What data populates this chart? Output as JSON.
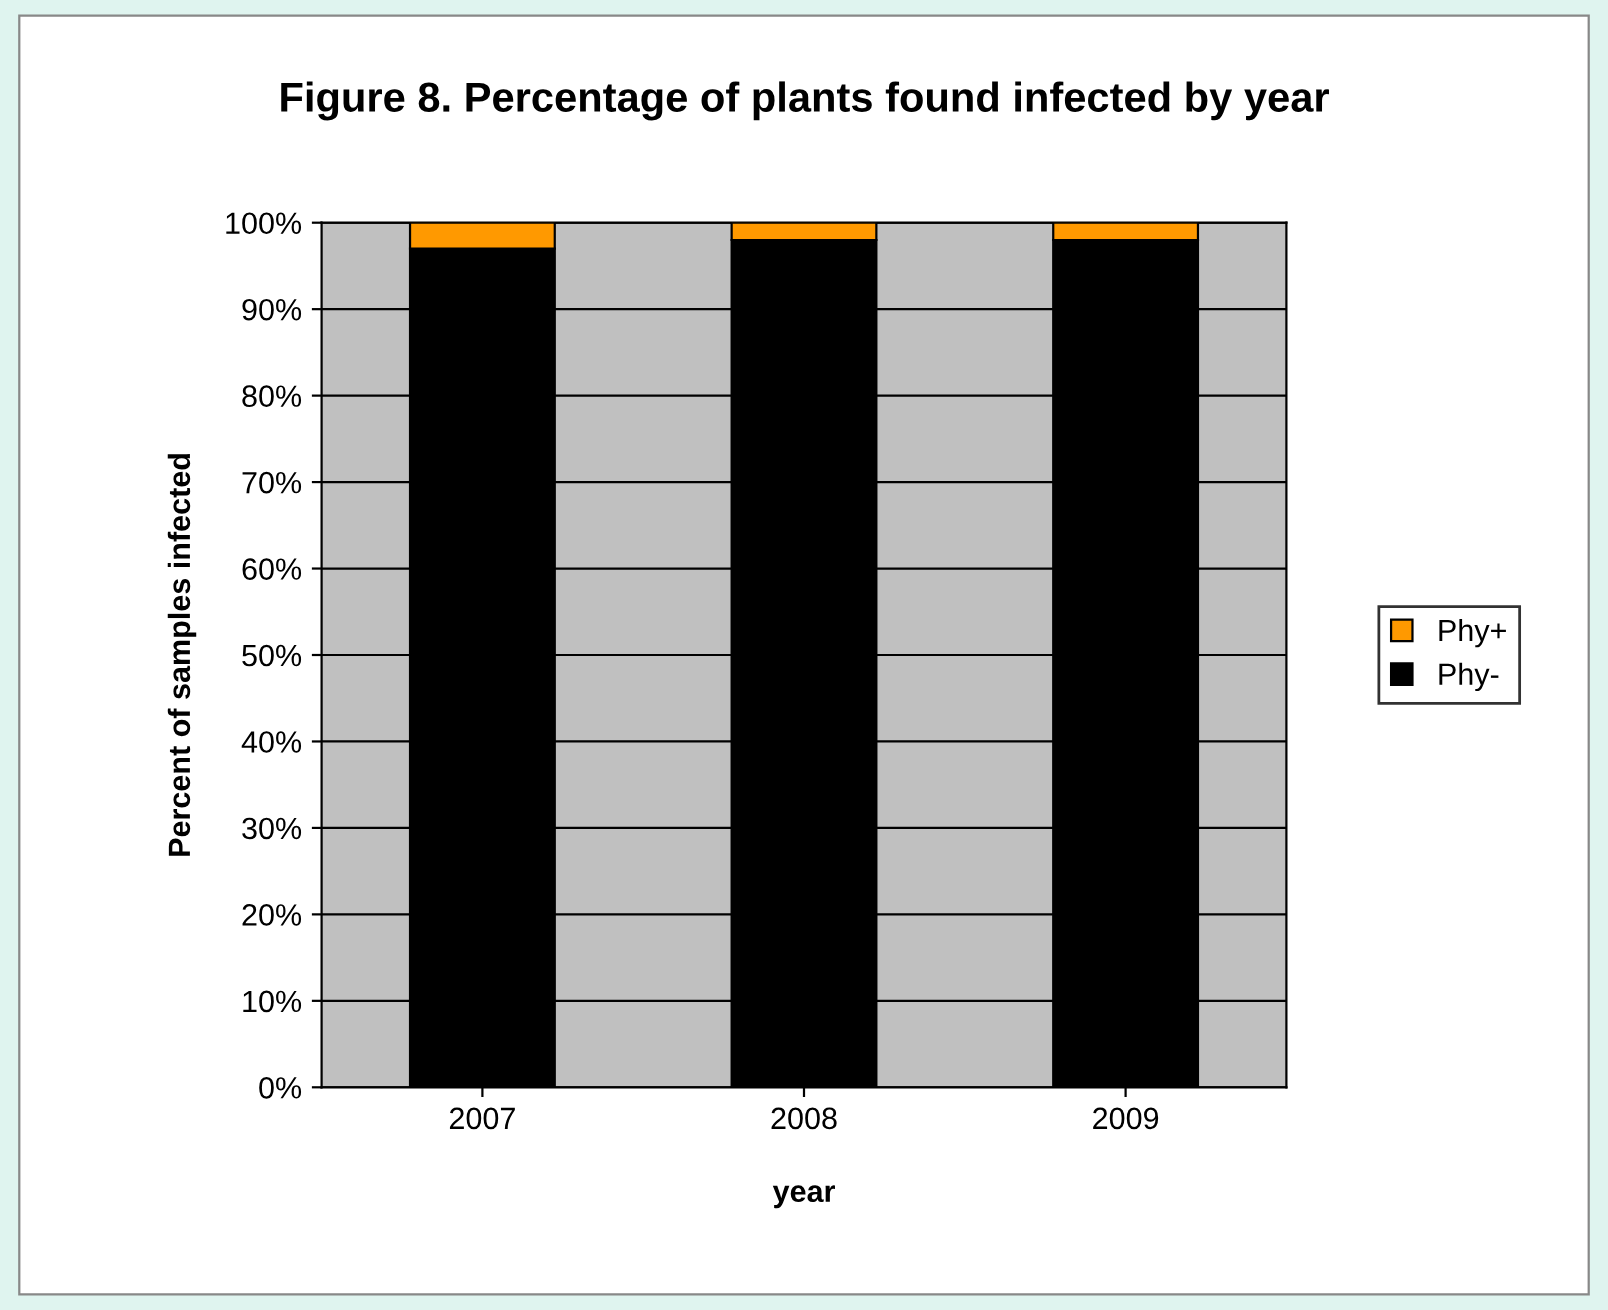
{
  "chart_data": {
    "type": "bar",
    "title": "Figure 8. Percentage of plants found infected by year",
    "xlabel": "year",
    "ylabel": "Percent of samples infected",
    "categories": [
      "2007",
      "2008",
      "2009"
    ],
    "stacked": true,
    "series": [
      {
        "name": "Phy-",
        "color": "#000000",
        "values": [
          97,
          98,
          98
        ]
      },
      {
        "name": "Phy+",
        "color": "#ff9900",
        "values": [
          3,
          2,
          2
        ]
      }
    ],
    "ylim": [
      0,
      100
    ],
    "yticks": [
      {
        "value": 0,
        "label": "0%"
      },
      {
        "value": 10,
        "label": "10%"
      },
      {
        "value": 20,
        "label": "20%"
      },
      {
        "value": 30,
        "label": "30%"
      },
      {
        "value": 40,
        "label": "40%"
      },
      {
        "value": 50,
        "label": "50%"
      },
      {
        "value": 60,
        "label": "60%"
      },
      {
        "value": 70,
        "label": "70%"
      },
      {
        "value": 80,
        "label": "80%"
      },
      {
        "value": 90,
        "label": "90%"
      },
      {
        "value": 100,
        "label": "100%"
      }
    ],
    "grid": "y",
    "legend": "right"
  }
}
